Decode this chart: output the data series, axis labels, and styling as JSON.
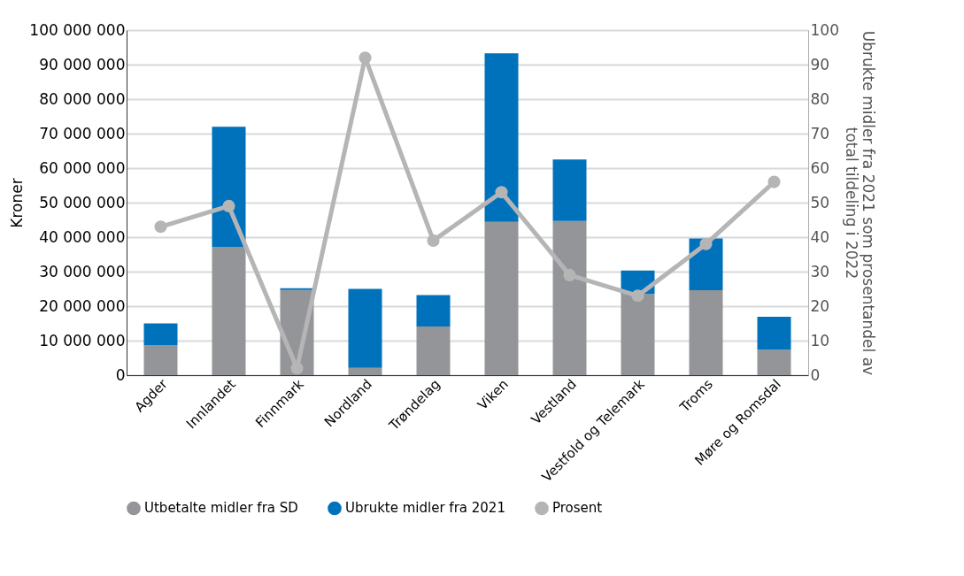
{
  "chart_data": {
    "type": "bar",
    "stacked": true,
    "categories": [
      "Agder",
      "Innlandet",
      "Finnmark",
      "Nordland",
      "Trøndelag",
      "Viken",
      "Vestland",
      "Vestfold og Telemark",
      "Troms",
      "Møre og Romsdal"
    ],
    "ylabel": "Kroner",
    "y2label": "Ubrukte midler fra 2021 som prosentandel av total tildeling i 2022",
    "ylim": [
      0,
      100000000
    ],
    "yticks": [
      {
        "value": 0,
        "label": "0"
      },
      {
        "value": 10000000,
        "label": "10 000 000"
      },
      {
        "value": 20000000,
        "label": "20 000 000"
      },
      {
        "value": 30000000,
        "label": "30 000 000"
      },
      {
        "value": 40000000,
        "label": "40 000 000"
      },
      {
        "value": 50000000,
        "label": "50 000 000"
      },
      {
        "value": 60000000,
        "label": "60 000 000"
      },
      {
        "value": 70000000,
        "label": "70 000 000"
      },
      {
        "value": 80000000,
        "label": "80 000 000"
      },
      {
        "value": 90000000,
        "label": "90 000 000"
      },
      {
        "value": 100000000,
        "label": "100 000 000"
      }
    ],
    "y2lim": [
      0,
      100
    ],
    "y2ticks": [
      0,
      10,
      20,
      30,
      40,
      50,
      60,
      70,
      80,
      90,
      100
    ],
    "grid": "y",
    "legend": "bottom",
    "series": [
      {
        "name": "Utbetalte midler fra SD",
        "color": "#939598",
        "values": [
          8700000,
          37200000,
          24700000,
          2100000,
          14100000,
          44400000,
          44700000,
          23500000,
          24600000,
          7400000
        ]
      },
      {
        "name": "Ubrukte midler fra 2021",
        "color": "#0072bc",
        "values": [
          6300000,
          34800000,
          500000,
          22900000,
          9100000,
          48900000,
          17800000,
          6800000,
          15000000,
          9500000
        ]
      },
      {
        "name": "Prosent",
        "type": "line",
        "axis": "y2",
        "color": "#b5b5b6",
        "marker": "circle",
        "line_style": "solid",
        "values": [
          43,
          49,
          2,
          92,
          39,
          53,
          29,
          23,
          38,
          56
        ]
      }
    ]
  }
}
